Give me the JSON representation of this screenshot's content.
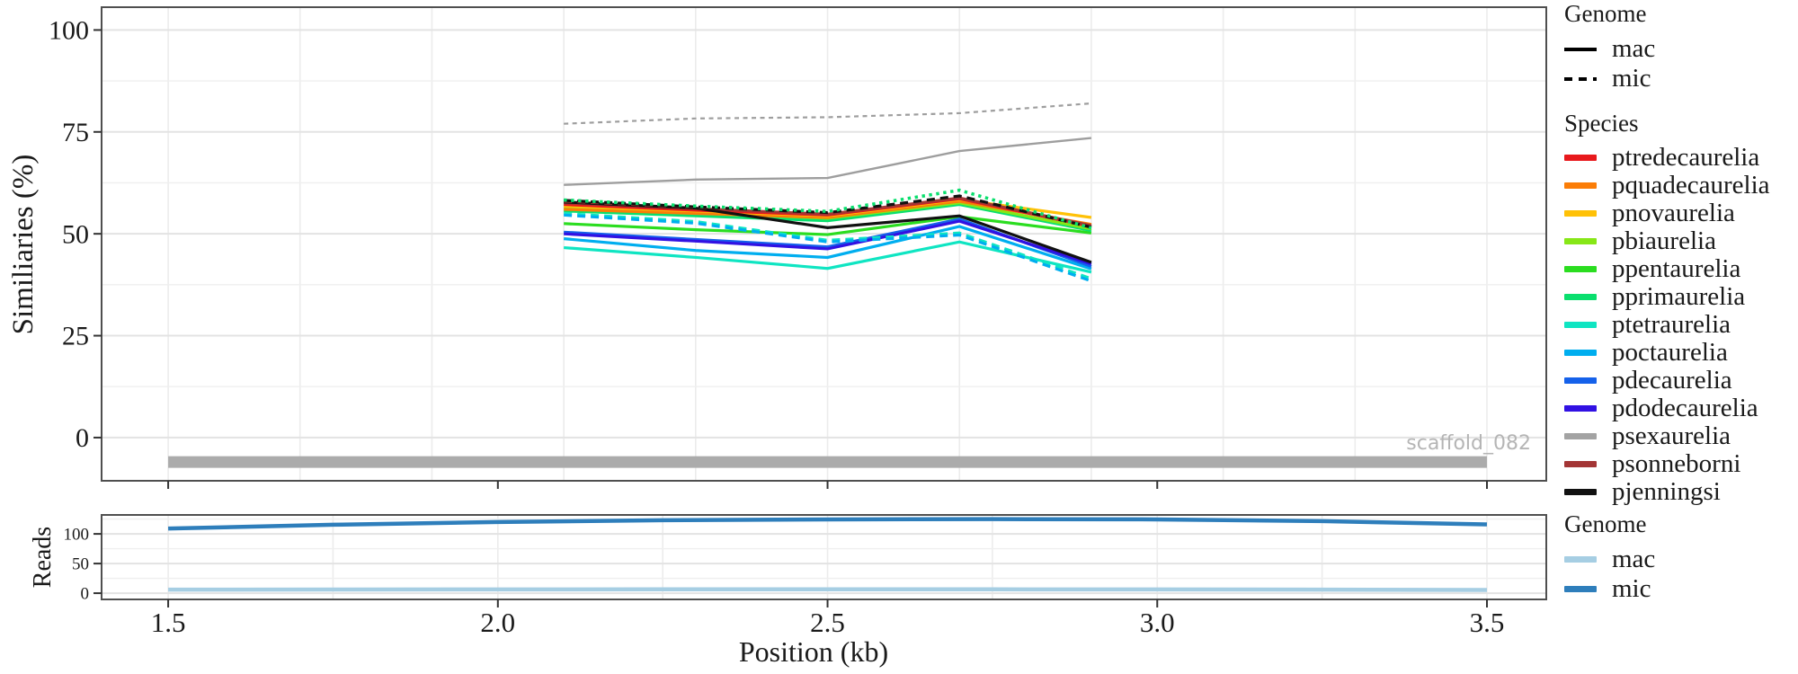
{
  "legends": {
    "genome_top": {
      "title": "Genome",
      "items": [
        {
          "label": "mac",
          "line_style": "solid",
          "color": "#000000"
        },
        {
          "label": "mic",
          "line_style": "dashed",
          "color": "#000000"
        }
      ]
    },
    "species": {
      "title": "Species",
      "items": [
        {
          "label": "ptredecaurelia",
          "color": "#E8191C"
        },
        {
          "label": "pquadecaurelia",
          "color": "#FB7D07"
        },
        {
          "label": "pnovaurelia",
          "color": "#FFC107"
        },
        {
          "label": "pbiaurelia",
          "color": "#87E717"
        },
        {
          "label": "ppentaurelia",
          "color": "#2BDD20"
        },
        {
          "label": "pprimaurelia",
          "color": "#0ADF6E"
        },
        {
          "label": "ptetraurelia",
          "color": "#0FE5C2"
        },
        {
          "label": "poctaurelia",
          "color": "#00AEEF"
        },
        {
          "label": "pdecaurelia",
          "color": "#1561EA"
        },
        {
          "label": "pdodecaurelia",
          "color": "#3111E3"
        },
        {
          "label": "psexaurelia",
          "color": "#A3A3A3"
        },
        {
          "label": "psonneborni",
          "color": "#A33535"
        },
        {
          "label": "pjenningsi",
          "color": "#111111"
        }
      ]
    },
    "genome_bottom": {
      "title": "Genome",
      "items": [
        {
          "label": "mac",
          "color": "#A6CEE3"
        },
        {
          "label": "mic",
          "color": "#2E7EBB"
        }
      ]
    }
  },
  "chart_data": [
    {
      "id": "similarity",
      "type": "line",
      "title": "",
      "ylabel": "Similiaries (%)",
      "xlabel": "Position (kb)",
      "xlim": [
        1.399,
        3.59
      ],
      "ylim": [
        -10.6,
        105.6
      ],
      "x_ticks": [
        1.5,
        2.0,
        2.5,
        3.0,
        3.5
      ],
      "x_tick_labels": [
        "1.5",
        "2.0",
        "2.5",
        "3.0",
        "3.5"
      ],
      "y_ticks": [
        0,
        25,
        50,
        75,
        100
      ],
      "y_tick_labels": [
        "0",
        "25",
        "50",
        "75",
        "100"
      ],
      "grid": {
        "x_step": 0.2,
        "y_step": 12.5,
        "grid_on": true,
        "legend_position": "right"
      },
      "x": [
        2.1,
        2.3,
        2.5,
        2.7,
        2.9
      ],
      "series": [
        {
          "name": "psexaurelia",
          "genome": "mac",
          "color": "#9E9E9E",
          "style": "solid",
          "width": 2.4,
          "values": [
            62.0,
            63.3,
            63.7,
            70.3,
            73.5
          ]
        },
        {
          "name": "ppentaurelia",
          "genome": "mac",
          "color": "#2BDD20",
          "style": "solid",
          "width": 3.2,
          "values": [
            52.5,
            51.0,
            49.8,
            54.2,
            50.2
          ]
        },
        {
          "name": "ptetraurelia",
          "genome": "mac",
          "color": "#0FE5C2",
          "style": "solid",
          "width": 3.2,
          "values": [
            46.6,
            44.2,
            41.5,
            48.0,
            40.6
          ]
        },
        {
          "name": "poctaurelia",
          "genome": "mac",
          "color": "#00AEEF",
          "style": "solid",
          "width": 3.2,
          "values": [
            48.8,
            45.9,
            44.2,
            51.8,
            41.4
          ]
        },
        {
          "name": "pdecaurelia",
          "genome": "mac",
          "color": "#1561EA",
          "style": "solid",
          "width": 3.2,
          "values": [
            50.4,
            48.6,
            46.8,
            53.6,
            42.0
          ]
        },
        {
          "name": "pdodecaurelia",
          "genome": "mac",
          "color": "#3111E3",
          "style": "solid",
          "width": 3.2,
          "values": [
            50.0,
            48.2,
            46.3,
            53.1,
            42.6
          ]
        },
        {
          "name": "pprimaurelia",
          "genome": "mac",
          "color": "#0ADF6E",
          "style": "solid",
          "width": 3.2,
          "values": [
            55.6,
            54.4,
            53.2,
            57.2,
            50.8
          ]
        },
        {
          "name": "pbiaurelia",
          "genome": "mac",
          "color": "#87E717",
          "style": "solid",
          "width": 3.2,
          "values": [
            56.4,
            55.2,
            53.8,
            57.6,
            51.2
          ]
        },
        {
          "name": "pquadecaurelia",
          "genome": "mac",
          "color": "#FB7D07",
          "style": "solid",
          "width": 3.2,
          "values": [
            56.0,
            55.0,
            54.0,
            58.0,
            52.3
          ]
        },
        {
          "name": "pnovaurelia",
          "genome": "mac",
          "color": "#FFC107",
          "style": "solid",
          "width": 3.2,
          "values": [
            56.8,
            55.6,
            54.4,
            58.4,
            54.0
          ]
        },
        {
          "name": "ptredecaurelia",
          "genome": "mac",
          "color": "#E8191C",
          "style": "solid",
          "width": 3.2,
          "values": [
            57.2,
            55.8,
            54.6,
            58.6,
            51.8
          ]
        },
        {
          "name": "psonneborni",
          "genome": "mac",
          "color": "#A33535",
          "style": "solid",
          "width": 3.2,
          "values": [
            57.6,
            56.2,
            54.8,
            58.8,
            52.0
          ]
        },
        {
          "name": "pjenningsi",
          "genome": "mac",
          "color": "#111111",
          "style": "solid",
          "width": 3.2,
          "values": [
            57.8,
            56.3,
            51.5,
            54.4,
            43.0
          ]
        },
        {
          "name": "psexaurelia",
          "genome": "mic",
          "color": "#9E9E9E",
          "style": "dashed",
          "width": 2.2,
          "values": [
            77.0,
            78.3,
            78.6,
            79.6,
            82.0
          ]
        },
        {
          "name": "ptetraurelia",
          "genome": "mic",
          "color": "#0FE5C2",
          "style": "dashed",
          "width": 3.2,
          "values": [
            55.0,
            53.0,
            48.4,
            50.2,
            39.0
          ]
        },
        {
          "name": "poctaurelia",
          "genome": "mic",
          "color": "#00AEEF",
          "style": "dashed",
          "width": 3.2,
          "values": [
            54.6,
            52.6,
            48.0,
            49.7,
            38.4
          ]
        },
        {
          "name": "psonneborni",
          "genome": "mic",
          "color": "#A33535",
          "style": "dashed",
          "width": 3.2,
          "values": [
            58.0,
            56.5,
            55.0,
            59.0,
            51.9
          ]
        },
        {
          "name": "pjenningsi",
          "genome": "mic",
          "color": "#111111",
          "style": "dashed",
          "width": 3.2,
          "values": [
            58.2,
            56.6,
            55.2,
            59.3,
            51.6
          ]
        },
        {
          "name": "pprimaurelia",
          "genome": "mic",
          "color": "#0ADF6E",
          "style": "dotted",
          "width": 3.6,
          "values": [
            58.3,
            56.8,
            55.5,
            60.7,
            51.4
          ]
        }
      ],
      "scaffold_bar": {
        "label": "scaffold_082",
        "x_start": 1.5,
        "x_end": 3.5,
        "y": -6,
        "color": "#ABABAB",
        "label_color": "#B5B5B5"
      }
    },
    {
      "id": "reads",
      "type": "line",
      "title": "",
      "ylabel": "Reads",
      "xlabel": "Position (kb)",
      "xlim": [
        1.399,
        3.59
      ],
      "ylim": [
        -10.5,
        132
      ],
      "x_ticks": [
        1.5,
        2.0,
        2.5,
        3.0,
        3.5
      ],
      "y_ticks": [
        0,
        50,
        100
      ],
      "y_tick_labels": [
        "0",
        "50",
        "100"
      ],
      "grid": {
        "x_step": 0.25,
        "y_step": 25,
        "grid_on": true,
        "legend_position": "right"
      },
      "x": [
        1.5,
        1.75,
        2.0,
        2.25,
        2.5,
        2.75,
        3.0,
        3.25,
        3.5
      ],
      "series": [
        {
          "name": "mac",
          "genome": "mac",
          "color": "#A6CEE3",
          "style": "solid",
          "width": 4.5,
          "values": [
            6,
            6.2,
            6.4,
            6.5,
            6.5,
            6.5,
            6.3,
            6.0,
            5.5
          ]
        },
        {
          "name": "mic",
          "genome": "mic",
          "color": "#2E7EBB",
          "style": "solid",
          "width": 4.5,
          "values": [
            109,
            115.5,
            120,
            123,
            124.5,
            125,
            124.5,
            121.5,
            116
          ]
        }
      ]
    }
  ]
}
